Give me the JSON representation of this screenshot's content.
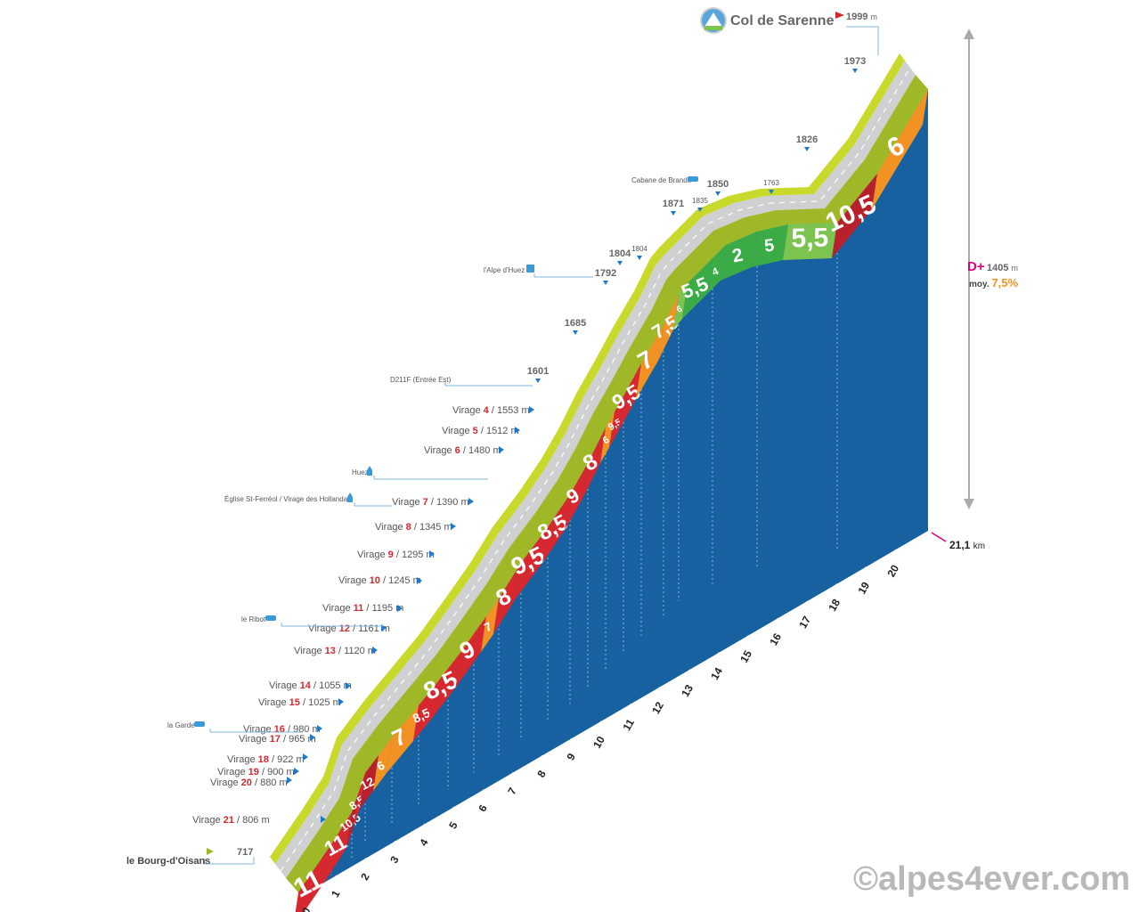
{
  "summit": {
    "name": "Col de Sarenne",
    "altitude": "1999",
    "unit": "m"
  },
  "start": {
    "name": "le Bourg-d'Oisans",
    "altitude": "717"
  },
  "stats": {
    "dplus_label": "D+",
    "dplus_value": "1405",
    "dplus_unit": "m",
    "avg_label": "moy.",
    "avg_value": "7,5%"
  },
  "distance": {
    "value": "21,1",
    "unit": "km"
  },
  "watermark": "©alpes4ever.com",
  "colors": {
    "blue": "#1761a0",
    "road": "#cfd0d2",
    "shoulder": "#c8d92c",
    "red": "#d7282f",
    "darkred": "#b8202b",
    "orange": "#f29222",
    "green": "#3aab47",
    "lightgreen": "#7dc34f"
  },
  "chart_data": {
    "type": "area",
    "title": "Col de Sarenne",
    "xlabel": "km",
    "ylabel": "m",
    "x_ticks": [
      "0",
      "1",
      "2",
      "3",
      "4",
      "5",
      "6",
      "7",
      "8",
      "9",
      "10",
      "11",
      "12",
      "13",
      "14",
      "15",
      "16",
      "17",
      "18",
      "19",
      "20"
    ],
    "x_max": 21.1,
    "segments": [
      {
        "start_km": 0,
        "end_km": 1,
        "grade": "11",
        "color": "red"
      },
      {
        "start_km": 1,
        "end_km": 2,
        "grade": "11",
        "color": "red"
      },
      {
        "start_km": 2,
        "end_km": 2.5,
        "grade": "10,5",
        "color": "darkred"
      },
      {
        "start_km": 2.5,
        "end_km": 3,
        "grade": "8,5",
        "color": "red"
      },
      {
        "start_km": 3,
        "end_km": 3.5,
        "grade": "12",
        "color": "darkred"
      },
      {
        "start_km": 3.5,
        "end_km": 4,
        "grade": "6",
        "color": "orange"
      },
      {
        "start_km": 4,
        "end_km": 5,
        "grade": "7",
        "color": "orange"
      },
      {
        "start_km": 5,
        "end_km": 5.5,
        "grade": "8,5",
        "color": "red"
      },
      {
        "start_km": 5.5,
        "end_km": 6.5,
        "grade": "8,5",
        "color": "red"
      },
      {
        "start_km": 6.5,
        "end_km": 7.5,
        "grade": "9",
        "color": "red"
      },
      {
        "start_km": 7.5,
        "end_km": 8,
        "grade": "7",
        "color": "orange"
      },
      {
        "start_km": 8,
        "end_km": 9,
        "grade": "8",
        "color": "red"
      },
      {
        "start_km": 9,
        "end_km": 10,
        "grade": "9,5",
        "color": "red"
      },
      {
        "start_km": 10,
        "end_km": 11,
        "grade": "8,5",
        "color": "red"
      },
      {
        "start_km": 11,
        "end_km": 12,
        "grade": "9",
        "color": "red"
      },
      {
        "start_km": 12,
        "end_km": 13,
        "grade": "8",
        "color": "red"
      },
      {
        "start_km": 13,
        "end_km": 13.5,
        "grade": "6",
        "color": "orange"
      },
      {
        "start_km": 13.5,
        "end_km": 14,
        "grade": "9,5",
        "color": "red"
      },
      {
        "start_km": 14,
        "end_km": 15,
        "grade": "9,5",
        "color": "red"
      },
      {
        "start_km": 15,
        "end_km": 16,
        "grade": "7",
        "color": "orange"
      },
      {
        "start_km": 16,
        "end_km": 17,
        "grade": "7,5",
        "color": "orange"
      },
      {
        "start_km": 17,
        "end_km": 17.5,
        "grade": "6",
        "color": "lightgreen"
      },
      {
        "start_km": 17.5,
        "end_km": 18,
        "grade": "5,5",
        "color": "green"
      },
      {
        "start_km": 18,
        "end_km": 18.5,
        "grade": "4",
        "color": "green"
      },
      {
        "start_km": 18.5,
        "end_km": 19,
        "grade": "2",
        "color": "green"
      },
      {
        "start_km": 19,
        "end_km": 19.5,
        "grade": "5",
        "color": "green"
      },
      {
        "start_km": 19.5,
        "end_km": 20,
        "grade": "5,5",
        "color": "lightgreen"
      },
      {
        "start_km": 20,
        "end_km": 20.6,
        "grade": "10,5",
        "color": "darkred"
      },
      {
        "start_km": 20.6,
        "end_km": 21.1,
        "grade": "6",
        "color": "orange"
      }
    ],
    "altitude_labels": [
      {
        "km": 0,
        "alt": "717",
        "side": "left"
      },
      {
        "km": 9.6,
        "alt": "1601",
        "side": "left"
      },
      {
        "km": 10.8,
        "alt": "1685",
        "side": "left"
      },
      {
        "km": 12.1,
        "alt": "1792",
        "side": "left"
      },
      {
        "km": 12.5,
        "alt": "1804",
        "side": "left"
      },
      {
        "km": 12.8,
        "alt": "1804",
        "side": "small"
      },
      {
        "km": 14.4,
        "alt": "1871",
        "side": "left"
      },
      {
        "km": 15.2,
        "alt": "1835",
        "side": "small"
      },
      {
        "km": 15.9,
        "alt": "1850",
        "side": "left"
      },
      {
        "km": 17.4,
        "alt": "1763",
        "side": "small"
      },
      {
        "km": 18.2,
        "alt": "1826",
        "side": "left"
      },
      {
        "km": 20.4,
        "alt": "1973",
        "side": "left"
      }
    ],
    "virages": [
      {
        "label": "Virage",
        "n": "21",
        "alt": "806 m"
      },
      {
        "label": "Virage",
        "n": "20",
        "alt": "880 m"
      },
      {
        "label": "Virage",
        "n": "19",
        "alt": "900 m"
      },
      {
        "label": "Virage",
        "n": "18",
        "alt": "922 m"
      },
      {
        "label": "Virage",
        "n": "17",
        "alt": "965 m"
      },
      {
        "label": "Virage",
        "n": "16",
        "alt": "980 m"
      },
      {
        "label": "Virage",
        "n": "15",
        "alt": "1025 m"
      },
      {
        "label": "Virage",
        "n": "14",
        "alt": "1055 m"
      },
      {
        "label": "Virage",
        "n": "13",
        "alt": "1120 m"
      },
      {
        "label": "Virage",
        "n": "12",
        "alt": "1161 m"
      },
      {
        "label": "Virage",
        "n": "11",
        "alt": "1195 m"
      },
      {
        "label": "Virage",
        "n": "10",
        "alt": "1245 m"
      },
      {
        "label": "Virage",
        "n": "9",
        "alt": "1295 m"
      },
      {
        "label": "Virage",
        "n": "8",
        "alt": "1345 m"
      },
      {
        "label": "Virage",
        "n": "7",
        "alt": "1390 m"
      },
      {
        "label": "Virage",
        "n": "6",
        "alt": "1480 m"
      },
      {
        "label": "Virage",
        "n": "5",
        "alt": "1512 m"
      },
      {
        "label": "Virage",
        "n": "4",
        "alt": "1553 m"
      }
    ],
    "places": [
      {
        "name": "la Garde",
        "icon": "village-icon"
      },
      {
        "name": "le Ribot",
        "icon": "village-icon"
      },
      {
        "name": "Église St-Ferréol / Virage des Hollandais",
        "icon": "church-icon"
      },
      {
        "name": "Huez",
        "icon": "church-icon"
      },
      {
        "name": "D211F (Entrée Est)",
        "icon": ""
      },
      {
        "name": "l'Alpe d'Huez",
        "icon": "ski-lift-icon"
      },
      {
        "name": "Cabane de Brande",
        "icon": "village-icon"
      }
    ]
  }
}
